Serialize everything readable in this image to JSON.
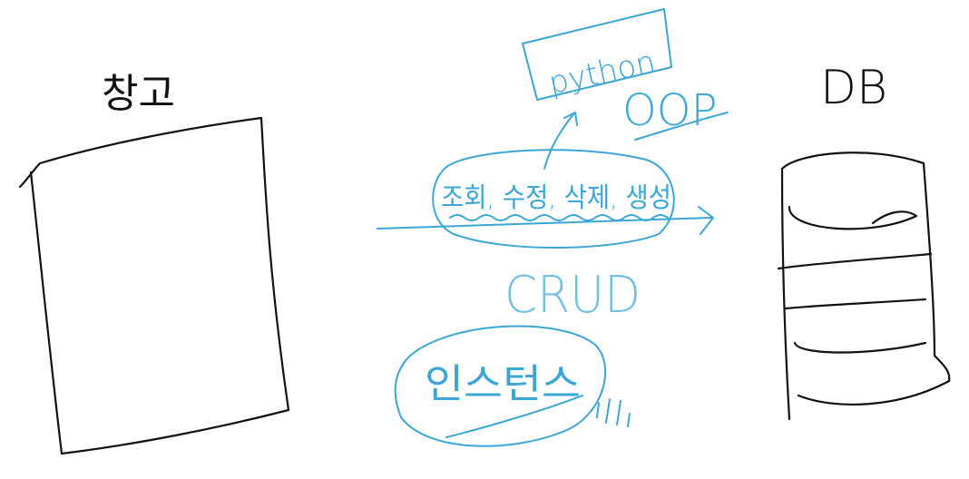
{
  "colors": {
    "ink_black": "#111111",
    "ink_blue": "#3aa6d6"
  },
  "labels": {
    "warehouse": "창고",
    "db": "DB",
    "python": "python",
    "oop": "OOP",
    "crud_korean": "조회, 수정, 삭제, 생성",
    "crud": "CRUD",
    "instance": "인스턴스"
  }
}
